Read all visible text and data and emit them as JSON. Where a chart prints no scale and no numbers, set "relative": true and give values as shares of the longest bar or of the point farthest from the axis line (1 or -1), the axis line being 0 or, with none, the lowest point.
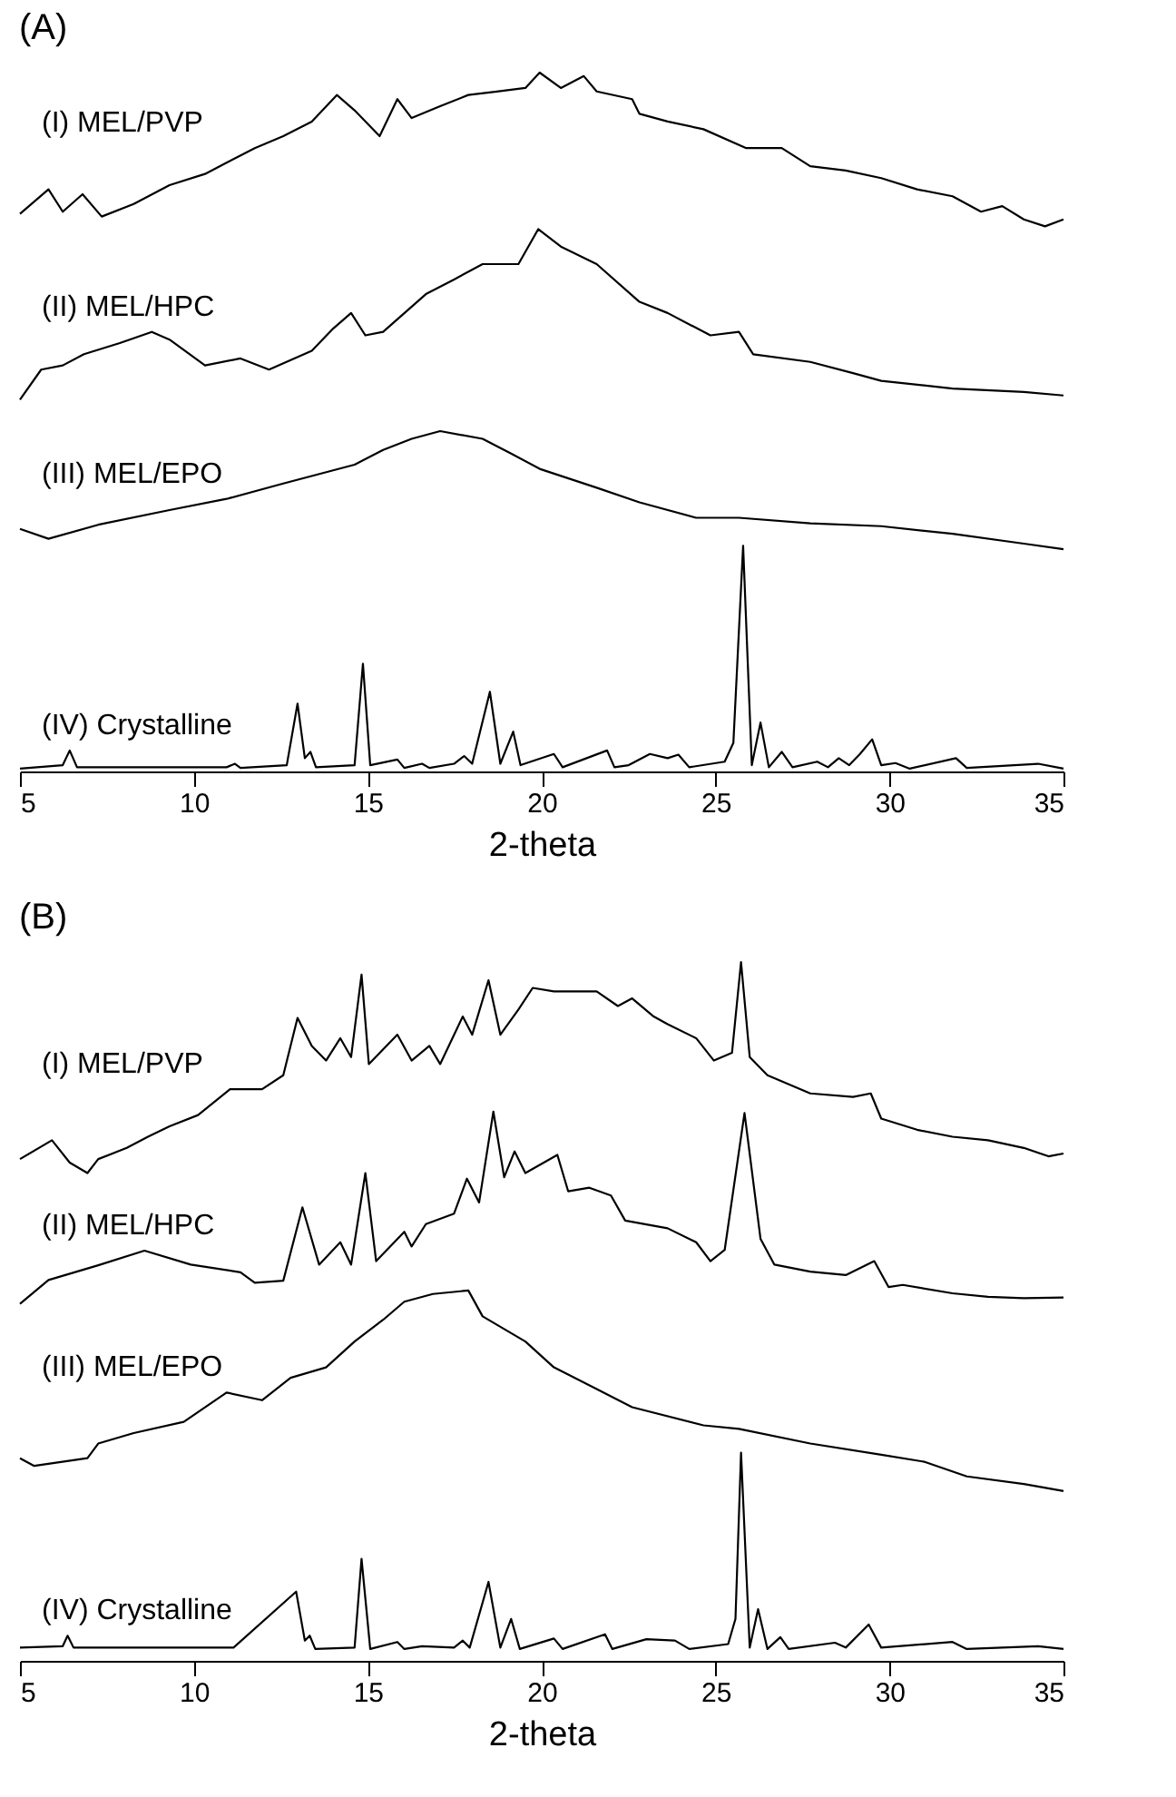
{
  "chart_data": [
    {
      "type": "line",
      "title": "(A)",
      "xlabel": "2-theta",
      "xlim": [
        5,
        35
      ],
      "xticks": [
        5,
        10,
        15,
        20,
        25,
        30,
        35
      ],
      "relative": true,
      "tick_labels": "x",
      "grid": false,
      "marker": "none",
      "line_style": "solid",
      "series": [
        {
          "name": "(I) MEL/PVP",
          "color": "#000000",
          "x": [
            5,
            5.82,
            6.23,
            6.8,
            7.35,
            8.27,
            9.3,
            10.32,
            10.94,
            11.75,
            12.57,
            13.39,
            14.11,
            14.62,
            15.34,
            15.85,
            16.26,
            17.08,
            17.89,
            18.71,
            19.53,
            19.94,
            20.55,
            21.21,
            21.58,
            22.6,
            22.81,
            23.62,
            24.65,
            25.88,
            26.9,
            27.72,
            28.74,
            29.76,
            30.79,
            31.81,
            32.63,
            33.24,
            33.86,
            34.47,
            35
          ],
          "values": [
            0.798,
            0.833,
            0.801,
            0.826,
            0.794,
            0.812,
            0.839,
            0.855,
            0.871,
            0.892,
            0.909,
            0.93,
            0.968,
            0.946,
            0.909,
            0.962,
            0.935,
            0.952,
            0.968,
            0.973,
            0.978,
            1.0,
            0.978,
            0.995,
            0.973,
            0.962,
            0.941,
            0.93,
            0.919,
            0.892,
            0.892,
            0.866,
            0.86,
            0.849,
            0.833,
            0.823,
            0.801,
            0.809,
            0.79,
            0.78,
            0.79
          ]
        },
        {
          "name": "(II) MEL/HPC",
          "color": "#000000",
          "x": [
            5,
            5.61,
            6.23,
            6.84,
            7.87,
            8.79,
            9.3,
            10.32,
            11.34,
            12.16,
            13.39,
            14.01,
            14.52,
            14.93,
            15.44,
            16.67,
            17.48,
            18.3,
            19.33,
            19.9,
            20.55,
            21.58,
            22.81,
            23.62,
            24.85,
            25.67,
            26.08,
            27.72,
            28.95,
            29.76,
            31.81,
            33.86,
            35
          ],
          "values": [
            0.532,
            0.575,
            0.581,
            0.597,
            0.613,
            0.629,
            0.618,
            0.581,
            0.591,
            0.575,
            0.602,
            0.634,
            0.656,
            0.624,
            0.629,
            0.683,
            0.704,
            0.726,
            0.726,
            0.776,
            0.751,
            0.726,
            0.672,
            0.656,
            0.624,
            0.629,
            0.597,
            0.586,
            0.57,
            0.559,
            0.548,
            0.543,
            0.538
          ]
        },
        {
          "name": "(III) MEL/EPO",
          "color": "#000000",
          "x": [
            5,
            5.82,
            7.25,
            9.3,
            10.94,
            12.57,
            14.62,
            15.44,
            16.26,
            17.08,
            18.3,
            19.12,
            19.94,
            21.58,
            22.81,
            24.44,
            25.67,
            27.72,
            29.76,
            31.81,
            33.86,
            35
          ],
          "values": [
            0.347,
            0.333,
            0.353,
            0.374,
            0.39,
            0.412,
            0.439,
            0.46,
            0.476,
            0.487,
            0.476,
            0.455,
            0.433,
            0.406,
            0.385,
            0.363,
            0.363,
            0.355,
            0.351,
            0.34,
            0.326,
            0.318
          ]
        },
        {
          "name": "(IV) Crystalline",
          "color": "#000000",
          "x": [
            5,
            6.23,
            6.43,
            6.64,
            10.94,
            11.18,
            11.34,
            12.67,
            12.98,
            13.19,
            13.35,
            13.51,
            14.62,
            14.86,
            15.07,
            15.85,
            16.05,
            16.56,
            16.77,
            17.48,
            17.77,
            18.0,
            18.51,
            18.81,
            19.18,
            19.39,
            20.35,
            20.6,
            21.88,
            22.09,
            22.5,
            23.11,
            23.62,
            23.93,
            24.24,
            25.26,
            25.51,
            25.79,
            26.04,
            26.29,
            26.53,
            26.9,
            27.21,
            27.92,
            28.23,
            28.54,
            28.84,
            29.15,
            29.5,
            29.76,
            30.17,
            30.58,
            31.91,
            32.22,
            34.27,
            35
          ],
          "values": [
            0.004,
            0.009,
            0.03,
            0.006,
            0.006,
            0.011,
            0.005,
            0.009,
            0.097,
            0.019,
            0.028,
            0.006,
            0.009,
            0.154,
            0.009,
            0.017,
            0.005,
            0.011,
            0.005,
            0.011,
            0.022,
            0.011,
            0.114,
            0.011,
            0.057,
            0.009,
            0.025,
            0.006,
            0.03,
            0.006,
            0.009,
            0.025,
            0.019,
            0.024,
            0.006,
            0.014,
            0.041,
            0.323,
            0.009,
            0.07,
            0.006,
            0.028,
            0.006,
            0.014,
            0.006,
            0.019,
            0.009,
            0.025,
            0.046,
            0.009,
            0.012,
            0.004,
            0.019,
            0.005,
            0.011,
            0.004
          ]
        }
      ]
    },
    {
      "type": "line",
      "title": "(B)",
      "xlabel": "2-theta",
      "xlim": [
        5,
        35
      ],
      "xticks": [
        5,
        10,
        15,
        20,
        25,
        30,
        35
      ],
      "relative": true,
      "tick_labels": "x",
      "grid": false,
      "marker": "none",
      "line_style": "solid",
      "series": [
        {
          "name": "(I) MEL/PVP",
          "color": "#000000",
          "x": [
            5,
            5.92,
            6.43,
            6.94,
            7.25,
            8.07,
            8.68,
            9.3,
            10.12,
            11.04,
            11.96,
            12.57,
            12.98,
            13.39,
            13.8,
            14.21,
            14.52,
            14.82,
            15.03,
            15.85,
            16.26,
            16.77,
            17.08,
            17.73,
            18.0,
            18.47,
            18.81,
            19.33,
            19.74,
            20.35,
            20.96,
            21.58,
            22.19,
            22.6,
            23.22,
            23.62,
            24.44,
            24.95,
            25.47,
            25.73,
            25.98,
            26.49,
            27.72,
            28.95,
            29.46,
            29.76,
            30.79,
            31.81,
            32.83,
            33.86,
            34.57,
            35
          ],
          "values": [
            0.718,
            0.745,
            0.713,
            0.698,
            0.718,
            0.734,
            0.75,
            0.765,
            0.781,
            0.818,
            0.818,
            0.838,
            0.92,
            0.88,
            0.859,
            0.891,
            0.864,
            0.982,
            0.854,
            0.896,
            0.859,
            0.88,
            0.854,
            0.922,
            0.896,
            0.974,
            0.896,
            0.932,
            0.963,
            0.958,
            0.958,
            0.958,
            0.937,
            0.948,
            0.922,
            0.911,
            0.891,
            0.859,
            0.87,
            1.0,
            0.864,
            0.838,
            0.812,
            0.807,
            0.812,
            0.776,
            0.76,
            0.75,
            0.745,
            0.734,
            0.722,
            0.726
          ]
        },
        {
          "name": "(II) MEL/HPC",
          "color": "#000000",
          "x": [
            5,
            5.82,
            7.25,
            8.58,
            9.91,
            11.34,
            11.75,
            12.57,
            13.12,
            13.6,
            14.21,
            14.52,
            14.93,
            15.24,
            16.05,
            16.26,
            16.67,
            17.48,
            17.85,
            18.2,
            18.61,
            18.92,
            19.22,
            19.53,
            20.45,
            20.76,
            21.37,
            21.99,
            22.4,
            23.62,
            24.44,
            24.85,
            25.26,
            25.83,
            26.29,
            26.69,
            27.72,
            28.74,
            29.56,
            29.97,
            30.38,
            31.81,
            32.83,
            33.86,
            35
          ],
          "values": [
            0.511,
            0.545,
            0.566,
            0.587,
            0.567,
            0.556,
            0.541,
            0.544,
            0.649,
            0.567,
            0.599,
            0.567,
            0.698,
            0.572,
            0.614,
            0.593,
            0.625,
            0.64,
            0.69,
            0.656,
            0.786,
            0.692,
            0.729,
            0.698,
            0.724,
            0.672,
            0.677,
            0.666,
            0.63,
            0.619,
            0.599,
            0.572,
            0.588,
            0.784,
            0.604,
            0.567,
            0.557,
            0.552,
            0.572,
            0.535,
            0.538,
            0.526,
            0.521,
            0.519,
            0.52
          ]
        },
        {
          "name": "(III) MEL/EPO",
          "color": "#000000",
          "x": [
            5,
            5.41,
            6.94,
            7.25,
            8.27,
            9.71,
            10.94,
            11.96,
            12.78,
            13.8,
            14.62,
            15.44,
            16.05,
            16.87,
            17.89,
            18.3,
            19.53,
            20.35,
            21.58,
            22.6,
            24.65,
            25.67,
            27.72,
            29.76,
            30.99,
            32.22,
            33.86,
            35
          ],
          "values": [
            0.29,
            0.279,
            0.29,
            0.311,
            0.326,
            0.342,
            0.384,
            0.373,
            0.405,
            0.42,
            0.457,
            0.488,
            0.514,
            0.525,
            0.53,
            0.493,
            0.457,
            0.42,
            0.389,
            0.363,
            0.337,
            0.332,
            0.311,
            0.295,
            0.285,
            0.264,
            0.253,
            0.243
          ]
        },
        {
          "name": "(IV) Crystalline",
          "color": "#000000",
          "x": [
            5,
            6.23,
            6.37,
            6.54,
            11.14,
            12.94,
            13.19,
            13.33,
            13.49,
            14.62,
            14.82,
            15.07,
            15.85,
            16.05,
            16.56,
            17.48,
            17.73,
            17.93,
            18.47,
            18.81,
            19.12,
            19.37,
            20.35,
            20.6,
            21.82,
            22.03,
            23.01,
            23.83,
            24.24,
            25.36,
            25.57,
            25.73,
            25.98,
            26.22,
            26.49,
            26.86,
            27.1,
            28.43,
            28.74,
            29.4,
            29.76,
            31.81,
            32.22,
            34.27,
            35
          ],
          "values": [
            0.019,
            0.021,
            0.036,
            0.019,
            0.019,
            0.099,
            0.029,
            0.036,
            0.017,
            0.019,
            0.146,
            0.017,
            0.027,
            0.017,
            0.021,
            0.019,
            0.029,
            0.019,
            0.113,
            0.019,
            0.06,
            0.017,
            0.032,
            0.017,
            0.038,
            0.017,
            0.031,
            0.029,
            0.017,
            0.024,
            0.06,
            0.298,
            0.019,
            0.074,
            0.017,
            0.034,
            0.017,
            0.026,
            0.019,
            0.052,
            0.019,
            0.027,
            0.017,
            0.021,
            0.017
          ]
        }
      ]
    }
  ]
}
